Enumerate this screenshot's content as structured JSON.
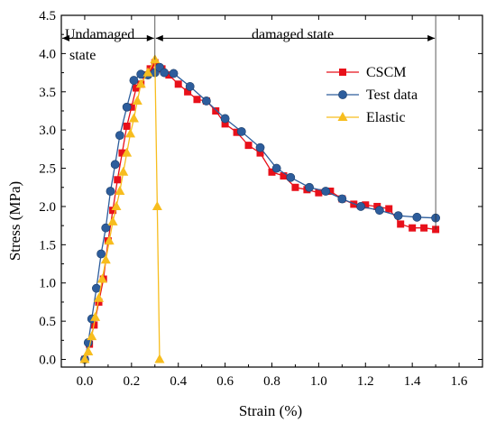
{
  "chart_data": {
    "type": "line",
    "xlabel": "Strain (%)",
    "ylabel": "Stress (MPa)",
    "xlim": [
      -0.1,
      1.7
    ],
    "ylim": [
      -0.1,
      4.5
    ],
    "x_ticks": [
      0.0,
      0.2,
      0.4,
      0.6,
      0.8,
      1.0,
      1.2,
      1.4,
      1.6
    ],
    "x_tick_labels": [
      "0.0",
      "0.2",
      "0.4",
      "0.6",
      "0.8",
      "1.0",
      "1.2",
      "1.4",
      "1.6"
    ],
    "y_ticks": [
      0.0,
      0.5,
      1.0,
      1.5,
      2.0,
      2.5,
      3.0,
      3.5,
      4.0,
      4.5
    ],
    "y_tick_labels": [
      "0.0",
      "0.5",
      "1.0",
      "1.5",
      "2.0",
      "2.5",
      "3.0",
      "3.5",
      "4.0",
      "4.5"
    ],
    "grid": false,
    "legend_position": "top-right",
    "annotations": {
      "undamaged_line1": "Undamaged",
      "undamaged_line2": "state",
      "damaged": "damaged state"
    },
    "regions": {
      "boundary_x": 0.3,
      "start_x": -0.1,
      "end_x": 1.5,
      "arrow_y": 4.2
    },
    "series": [
      {
        "name": "CSCM",
        "color": "#e8101a",
        "marker": "square",
        "x": [
          0.0,
          0.02,
          0.04,
          0.06,
          0.08,
          0.1,
          0.12,
          0.14,
          0.16,
          0.18,
          0.2,
          0.22,
          0.24,
          0.26,
          0.28,
          0.3,
          0.33,
          0.36,
          0.4,
          0.44,
          0.48,
          0.52,
          0.56,
          0.6,
          0.65,
          0.7,
          0.75,
          0.8,
          0.85,
          0.9,
          0.95,
          1.0,
          1.05,
          1.1,
          1.15,
          1.2,
          1.25,
          1.3,
          1.35,
          1.4,
          1.45,
          1.5
        ],
        "y": [
          0.0,
          0.2,
          0.45,
          0.75,
          1.05,
          1.55,
          1.95,
          2.35,
          2.7,
          3.05,
          3.3,
          3.55,
          3.6,
          3.72,
          3.8,
          3.88,
          3.8,
          3.72,
          3.6,
          3.5,
          3.4,
          3.38,
          3.25,
          3.08,
          2.97,
          2.8,
          2.7,
          2.45,
          2.4,
          2.25,
          2.22,
          2.18,
          2.2,
          2.1,
          2.03,
          2.02,
          2.0,
          1.97,
          1.77,
          1.72,
          1.72,
          1.7
        ]
      },
      {
        "name": "Test data",
        "color": "#2d5d9c",
        "marker": "circle",
        "x": [
          0.0,
          0.015,
          0.03,
          0.05,
          0.07,
          0.09,
          0.11,
          0.13,
          0.15,
          0.18,
          0.21,
          0.24,
          0.27,
          0.3,
          0.32,
          0.34,
          0.38,
          0.45,
          0.52,
          0.6,
          0.67,
          0.75,
          0.82,
          0.88,
          0.96,
          1.03,
          1.1,
          1.18,
          1.26,
          1.34,
          1.42,
          1.5
        ],
        "y": [
          0.0,
          0.22,
          0.53,
          0.93,
          1.38,
          1.72,
          2.2,
          2.55,
          2.93,
          3.3,
          3.65,
          3.73,
          3.72,
          3.75,
          3.82,
          3.75,
          3.74,
          3.57,
          3.38,
          3.15,
          2.98,
          2.77,
          2.5,
          2.38,
          2.25,
          2.2,
          2.1,
          2.0,
          1.95,
          1.88,
          1.86,
          1.85
        ]
      },
      {
        "name": "Elastic",
        "color": "#f7bd1e",
        "marker": "triangle",
        "x": [
          0.0,
          0.015,
          0.03,
          0.045,
          0.06,
          0.075,
          0.09,
          0.105,
          0.12,
          0.135,
          0.15,
          0.165,
          0.18,
          0.195,
          0.21,
          0.225,
          0.24,
          0.27,
          0.3,
          0.31,
          0.32
        ],
        "y": [
          0.0,
          0.1,
          0.3,
          0.55,
          0.8,
          1.05,
          1.3,
          1.55,
          1.8,
          2.0,
          2.2,
          2.45,
          2.7,
          2.95,
          3.15,
          3.38,
          3.6,
          3.75,
          3.92,
          2.0,
          0.0
        ]
      }
    ]
  }
}
